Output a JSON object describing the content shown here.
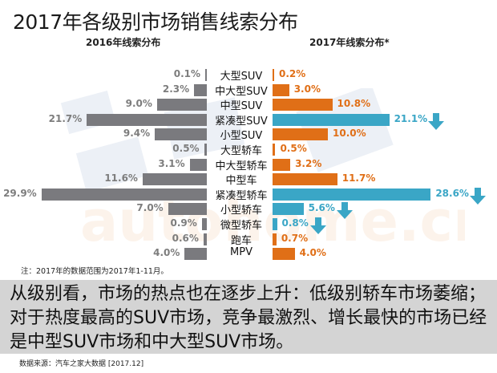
{
  "title": "2017年各级别市场销售线索分布",
  "left_heading": "2016年线索分布",
  "right_heading": "2017年线索分布*",
  "note": "注：2017年的数据范围为2017年1-11月。",
  "summary": "从级别看，市场的热点也在逐步上升：低级别轿车市场萎缩；对于热度最高的SUV市场，竞争最激烈、增长最快的市场已经是中型SUV市场和中大型SUV市场。",
  "source": "数据来源：汽车之家大数据  [2017.12]",
  "colors": {
    "bar_2016": "#7a7a7e",
    "bar_2017_up": "#e06f17",
    "bar_2017_down": "#3aa6c6",
    "value_2016": "#7d7d7d"
  },
  "rows": [
    {
      "cat": "大型SUV",
      "v2016": "0.1%",
      "v2017": "0.2%",
      "down": false
    },
    {
      "cat": "中大型SUV",
      "v2016": "2.3%",
      "v2017": "3.0%",
      "down": false
    },
    {
      "cat": "中型SUV",
      "v2016": "9.0%",
      "v2017": "10.8%",
      "down": false
    },
    {
      "cat": "紧凑型SUV",
      "v2016": "21.7%",
      "v2017": "21.1%",
      "down": true
    },
    {
      "cat": "小型SUV",
      "v2016": "9.4%",
      "v2017": "10.0%",
      "down": false
    },
    {
      "cat": "大型轿车",
      "v2016": "0.5%",
      "v2017": "0.5%",
      "down": false
    },
    {
      "cat": "中大型轿车",
      "v2016": "3.1%",
      "v2017": "3.2%",
      "down": false
    },
    {
      "cat": "中型车",
      "v2016": "11.6%",
      "v2017": "11.7%",
      "down": false
    },
    {
      "cat": "紧凑型轿车",
      "v2016": "29.9%",
      "v2017": "28.6%",
      "down": true
    },
    {
      "cat": "小型轿车",
      "v2016": "7.0%",
      "v2017": "5.6%",
      "down": true
    },
    {
      "cat": "微型轿车",
      "v2016": "0.9%",
      "v2017": "0.8%",
      "down": true
    },
    {
      "cat": "跑车",
      "v2016": "0.6%",
      "v2017": "0.7%",
      "down": false
    },
    {
      "cat": "MPV",
      "v2016": "4.0%",
      "v2017": "4.0%",
      "down": false
    }
  ],
  "chart_data": {
    "type": "bar",
    "title": "2017年各级别市场销售线索分布",
    "orientation": "horizontal-butterfly",
    "categories": [
      "大型SUV",
      "中大型SUV",
      "中型SUV",
      "紧凑型SUV",
      "小型SUV",
      "大型轿车",
      "中大型轿车",
      "中型车",
      "紧凑型轿车",
      "小型轿车",
      "微型轿车",
      "跑车",
      "MPV"
    ],
    "series": [
      {
        "name": "2016年线索分布",
        "values": [
          0.1,
          2.3,
          9.0,
          21.7,
          9.4,
          0.5,
          3.1,
          11.6,
          29.9,
          7.0,
          0.9,
          0.6,
          4.0
        ]
      },
      {
        "name": "2017年线索分布*",
        "values": [
          0.2,
          3.0,
          10.8,
          21.1,
          10.0,
          0.5,
          3.2,
          11.7,
          28.6,
          5.6,
          0.8,
          0.7,
          4.0
        ]
      }
    ],
    "unit": "%",
    "annotations": [
      "down arrows on 紧凑型SUV, 紧凑型轿车, 小型轿车, 微型轿车"
    ],
    "note": "注：2017年的数据范围为2017年1-11月。",
    "grid": false,
    "legend": "column headings above each side"
  }
}
